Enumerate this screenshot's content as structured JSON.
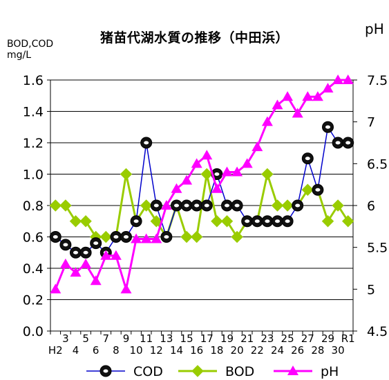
{
  "chart_data": {
    "type": "line",
    "title": "猪苗代湖水質の推移（中田浜）",
    "ylabel_left": [
      "BOD,COD",
      "mg/L"
    ],
    "ylabel_right": "pH",
    "y_left_range": [
      0.0,
      1.6
    ],
    "y_left_ticks": [
      "0.0",
      "0.2",
      "0.4",
      "0.6",
      "0.8",
      "1.0",
      "1.2",
      "1.4",
      "1.6"
    ],
    "y_right_range": [
      4.5,
      7.5
    ],
    "y_right_ticks": [
      "4.5",
      "5",
      "5.5",
      "6",
      "6.5",
      "7",
      "7.5"
    ],
    "x_categories": [
      "H2",
      "3",
      "4",
      "5",
      "6",
      "7",
      "8",
      "9",
      "10",
      "11",
      "12",
      "13",
      "14",
      "15",
      "16",
      "17",
      "18",
      "19",
      "20",
      "21",
      "22",
      "23",
      "24",
      "25",
      "26",
      "27",
      "28",
      "29",
      "30",
      "R1"
    ],
    "x_tick_labels_upper": [
      "",
      "3",
      "",
      "5",
      "",
      "7",
      "",
      "9",
      "",
      "11",
      "",
      "13",
      "",
      "15",
      "",
      "17",
      "",
      "19",
      "",
      "21",
      "",
      "23",
      "",
      "25",
      "",
      "27",
      "",
      "29",
      "",
      "R1"
    ],
    "x_tick_labels_lower": [
      "H2",
      "",
      "4",
      "",
      "6",
      "",
      "8",
      "",
      "10",
      "",
      "12",
      "",
      "14",
      "",
      "16",
      "",
      "18",
      "",
      "20",
      "",
      "22",
      "",
      "24",
      "",
      "26",
      "",
      "28",
      "",
      "30",
      ""
    ],
    "grid": "horizontal",
    "legend_position": "bottom",
    "series": [
      {
        "name": "COD",
        "axis": "left",
        "color": "#0000cc",
        "values": [
          0.6,
          0.55,
          0.5,
          0.5,
          0.56,
          0.5,
          0.6,
          0.6,
          0.7,
          1.2,
          0.8,
          0.6,
          0.8,
          0.8,
          0.8,
          0.8,
          1.0,
          0.8,
          0.8,
          0.7,
          0.7,
          0.7,
          0.7,
          0.7,
          0.8,
          1.1,
          0.9,
          1.3,
          1.2,
          1.2
        ]
      },
      {
        "name": "BOD",
        "axis": "left",
        "color": "#99cc00",
        "values": [
          0.8,
          0.8,
          0.7,
          0.7,
          0.6,
          0.6,
          0.6,
          1.0,
          0.7,
          0.8,
          0.7,
          0.6,
          0.8,
          0.6,
          0.6,
          1.0,
          0.7,
          0.7,
          0.6,
          0.7,
          0.7,
          1.0,
          0.8,
          0.8,
          0.8,
          0.9,
          0.9,
          0.7,
          0.8,
          0.7
        ]
      },
      {
        "name": "pH",
        "axis": "right",
        "color": "#ff00ff",
        "values": [
          5.0,
          5.3,
          5.2,
          5.3,
          5.1,
          5.4,
          5.4,
          5.0,
          5.6,
          5.6,
          5.6,
          6.0,
          6.2,
          6.3,
          6.5,
          6.6,
          6.2,
          6.4,
          6.4,
          6.5,
          6.7,
          7.0,
          7.2,
          7.3,
          7.1,
          7.3,
          7.3,
          7.4,
          7.5,
          7.5
        ]
      }
    ]
  }
}
